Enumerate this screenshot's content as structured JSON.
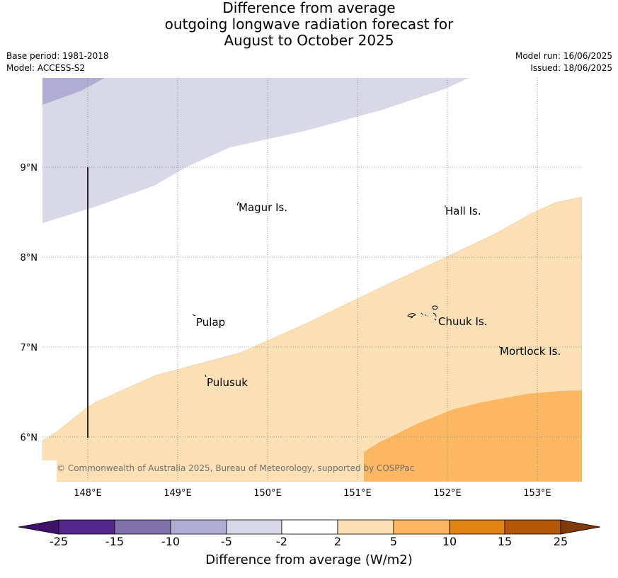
{
  "title": {
    "line1": "Difference from average",
    "line2": "outgoing longwave radiation forecast for",
    "line3": "August to October 2025"
  },
  "meta": {
    "base_period": "Base period: 1981-2018",
    "model": "Model: ACCESS-S2",
    "model_run": "Model run: 16/06/2025",
    "issued": "Issued: 18/06/2025"
  },
  "map": {
    "lon_labels": [
      "148°E",
      "149°E",
      "150°E",
      "151°E",
      "152°E",
      "153°E"
    ],
    "lat_labels": [
      "9°N",
      "8°N",
      "7°N",
      "6°N"
    ],
    "places": [
      "Magur Is.",
      "Hall Is.",
      "Pulap",
      "Chuuk Is.",
      "Mortlock Is.",
      "Pulusuk"
    ],
    "copyright": "© Commonwealth of Australia 2025, Bureau of Meteorology, supported by COSPPac",
    "colors": {
      "light_purple": "#d8d8e9",
      "mid_purple": "#b1acd3",
      "light_orange": "#fde0b5",
      "mid_orange": "#fbb762"
    }
  },
  "colorbar": {
    "label": "Difference from average (W/m2)",
    "ticks": [
      "-25",
      "-15",
      "-10",
      "-5",
      "-2",
      "2",
      "5",
      "10",
      "15",
      "25"
    ],
    "colors": [
      "#3f1167",
      "#54278f",
      "#8073ac",
      "#b1acd3",
      "#d8d8e9",
      "#ffffff",
      "#fde0b5",
      "#fbb762",
      "#e08214",
      "#b35806",
      "#7f3b08"
    ]
  }
}
